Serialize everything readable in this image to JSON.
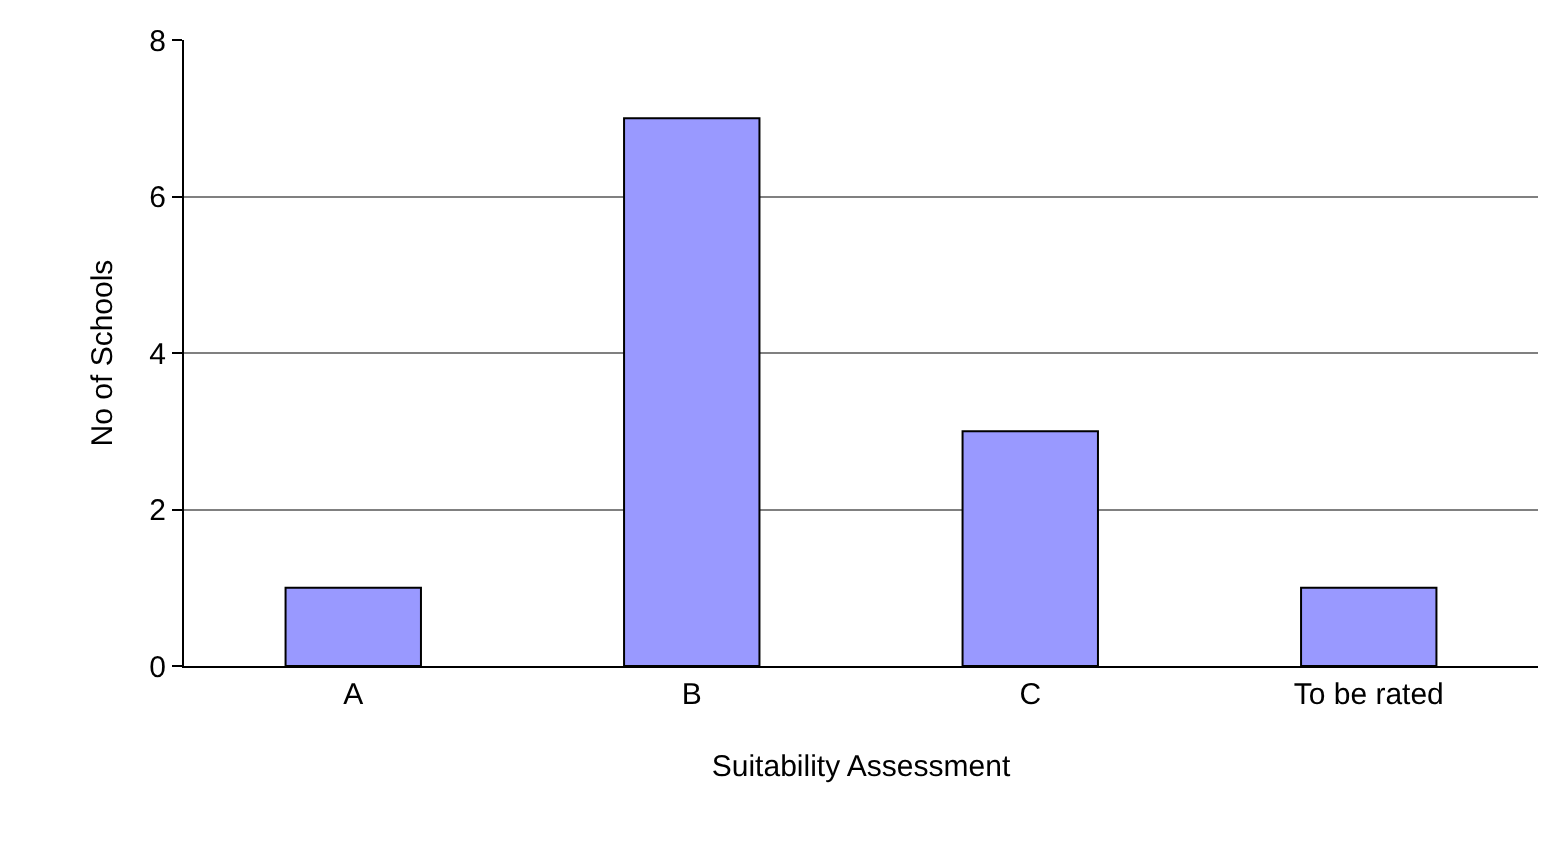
{
  "chart_data": {
    "type": "bar",
    "xlabel": "Suitability Assessment",
    "ylabel": "No of Schools",
    "categories": [
      "A",
      "B",
      "C",
      "To be rated"
    ],
    "values": [
      1,
      7,
      3,
      1
    ],
    "color": "#9999ff",
    "ylim": [
      0,
      8
    ],
    "yticks": [
      0,
      2,
      4,
      6,
      8
    ],
    "grid": "y",
    "legend": false
  }
}
